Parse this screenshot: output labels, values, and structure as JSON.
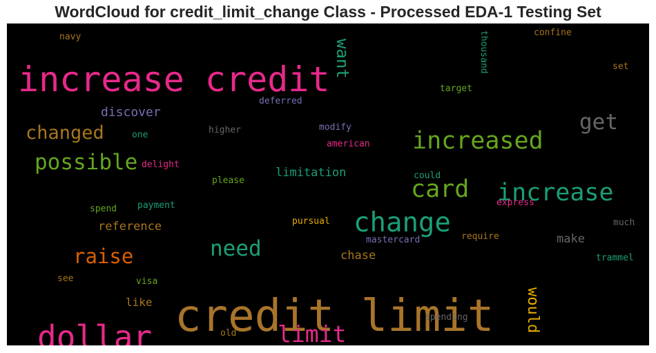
{
  "chart_data": {
    "type": "wordcloud",
    "title": "WordCloud for credit_limit_change Class - Processed EDA-1 Testing Set",
    "background": "#000000",
    "words": [
      {
        "text": "credit limit",
        "color": "#a8742a"
      },
      {
        "text": "increase credit",
        "color": "#e7298a"
      },
      {
        "text": "dollar",
        "color": "#e7298a"
      },
      {
        "text": "change",
        "color": "#1b9e77"
      },
      {
        "text": "increased",
        "color": "#66a61e"
      },
      {
        "text": "increase",
        "color": "#1b9e77"
      },
      {
        "text": "card",
        "color": "#66a61e"
      },
      {
        "text": "possible",
        "color": "#66a61e"
      },
      {
        "text": "changed",
        "color": "#a6761d"
      },
      {
        "text": "get",
        "color": "#666666"
      },
      {
        "text": "need",
        "color": "#1b9e77"
      },
      {
        "text": "raise",
        "color": "#d95f02"
      },
      {
        "text": "limit",
        "color": "#e7298a"
      },
      {
        "text": "want",
        "color": "#1b9e77"
      },
      {
        "text": "would",
        "color": "#e6ab02"
      },
      {
        "text": "discover",
        "color": "#7570b3"
      },
      {
        "text": "reference",
        "color": "#a6761d"
      },
      {
        "text": "limitation",
        "color": "#1b9e77"
      },
      {
        "text": "chase",
        "color": "#a6761d"
      },
      {
        "text": "make",
        "color": "#666666"
      },
      {
        "text": "like",
        "color": "#a6761d"
      },
      {
        "text": "navy",
        "color": "#a6761d"
      },
      {
        "text": "confine",
        "color": "#a6761d"
      },
      {
        "text": "set",
        "color": "#a6761d"
      },
      {
        "text": "thousand",
        "color": "#1b9e77"
      },
      {
        "text": "target",
        "color": "#66a61e"
      },
      {
        "text": "deferred",
        "color": "#7570b3"
      },
      {
        "text": "one",
        "color": "#1b9e77"
      },
      {
        "text": "higher",
        "color": "#666666"
      },
      {
        "text": "modify",
        "color": "#7570b3"
      },
      {
        "text": "american",
        "color": "#e7298a"
      },
      {
        "text": "delight",
        "color": "#e7298a"
      },
      {
        "text": "please",
        "color": "#66a61e"
      },
      {
        "text": "could",
        "color": "#1b9e77"
      },
      {
        "text": "express",
        "color": "#e7298a"
      },
      {
        "text": "spend",
        "color": "#66a61e"
      },
      {
        "text": "payment",
        "color": "#1b9e77"
      },
      {
        "text": "pursual",
        "color": "#e6ab02"
      },
      {
        "text": "mastercard",
        "color": "#7570b3"
      },
      {
        "text": "require",
        "color": "#a6761d"
      },
      {
        "text": "much",
        "color": "#666666"
      },
      {
        "text": "trammel",
        "color": "#1b9e77"
      },
      {
        "text": "see",
        "color": "#a6761d"
      },
      {
        "text": "visa",
        "color": "#66a61e"
      },
      {
        "text": "spending",
        "color": "#666666"
      },
      {
        "text": "old",
        "color": "#a6761d"
      }
    ]
  }
}
